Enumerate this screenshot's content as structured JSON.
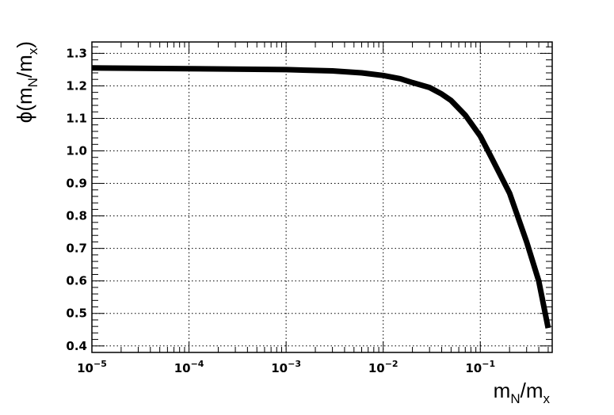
{
  "chart_data": {
    "type": "line",
    "xscale": "log",
    "xlim": [
      1e-05,
      0.55
    ],
    "ylim": [
      0.38,
      1.335
    ],
    "xlabel": {
      "base": "m",
      "sub1": "N",
      "mid": "/m",
      "sub2": "x"
    },
    "ylabel": {
      "pre": "ϕ(m",
      "sub1": "N",
      "mid": "/m",
      "sub2": "x",
      "post": ")"
    },
    "x_ticks": [
      {
        "value": 1e-05,
        "base": "10",
        "exp": "−5"
      },
      {
        "value": 0.0001,
        "base": "10",
        "exp": "−4"
      },
      {
        "value": 0.001,
        "base": "10",
        "exp": "−3"
      },
      {
        "value": 0.01,
        "base": "10",
        "exp": "−2"
      },
      {
        "value": 0.1,
        "base": "10",
        "exp": "−1"
      }
    ],
    "y_ticks": [
      {
        "value": 0.4,
        "label": "0.4"
      },
      {
        "value": 0.5,
        "label": "0.5"
      },
      {
        "value": 0.6,
        "label": "0.6"
      },
      {
        "value": 0.7,
        "label": "0.7"
      },
      {
        "value": 0.8,
        "label": "0.8"
      },
      {
        "value": 0.9,
        "label": "0.9"
      },
      {
        "value": 1.0,
        "label": "1.0"
      },
      {
        "value": 1.1,
        "label": "1.1"
      },
      {
        "value": 1.2,
        "label": "1.2"
      },
      {
        "value": 1.3,
        "label": "1.3"
      }
    ],
    "grid": true,
    "series": [
      {
        "x": [
          1e-05,
          0.0001,
          0.001,
          0.003,
          0.006,
          0.01,
          0.015,
          0.02,
          0.03,
          0.04,
          0.05,
          0.07,
          0.1,
          0.13,
          0.2,
          0.3,
          0.4,
          0.5
        ],
        "y": [
          1.255,
          1.253,
          1.25,
          1.246,
          1.24,
          1.232,
          1.222,
          1.21,
          1.195,
          1.175,
          1.155,
          1.11,
          1.045,
          0.98,
          0.87,
          0.72,
          0.6,
          0.455
        ]
      }
    ]
  }
}
